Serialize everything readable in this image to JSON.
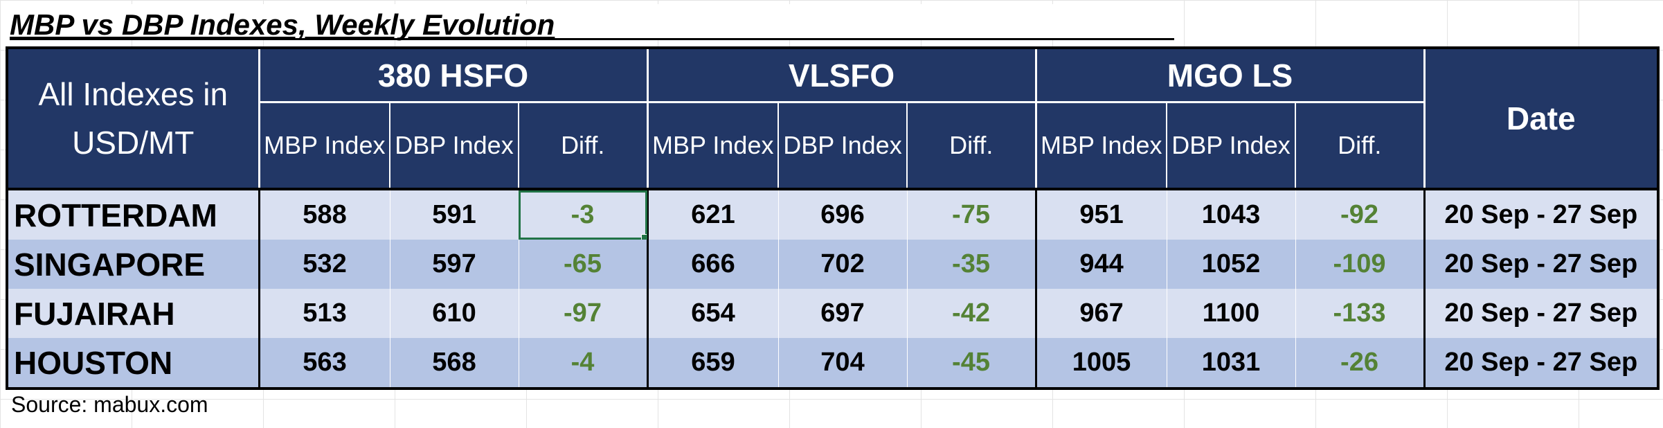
{
  "title": "MBP vs DBP Indexes, Weekly Evolution",
  "header": {
    "left_line1": "All Indexes in",
    "left_line2": "USD/MT",
    "groups": [
      "380 HSFO",
      "VLSFO",
      "MGO LS"
    ],
    "sub_labels": [
      "MBP Index",
      "DBP Index",
      "Diff."
    ],
    "date_label": "Date"
  },
  "rows": [
    {
      "city": "ROTTERDAM",
      "hsfo": [
        "588",
        "591",
        "-3"
      ],
      "vlsfo": [
        "621",
        "696",
        "-75"
      ],
      "mgo": [
        "951",
        "1043",
        "-92"
      ],
      "date": "20 Sep - 27 Sep"
    },
    {
      "city": "SINGAPORE",
      "hsfo": [
        "532",
        "597",
        "-65"
      ],
      "vlsfo": [
        "666",
        "702",
        "-35"
      ],
      "mgo": [
        "944",
        "1052",
        "-109"
      ],
      "date": "20 Sep - 27 Sep"
    },
    {
      "city": "FUJAIRAH",
      "hsfo": [
        "513",
        "610",
        "-97"
      ],
      "vlsfo": [
        "654",
        "697",
        "-42"
      ],
      "mgo": [
        "967",
        "1100",
        "-133"
      ],
      "date": "20 Sep - 27 Sep"
    },
    {
      "city": "HOUSTON",
      "hsfo": [
        "563",
        "568",
        "-4"
      ],
      "vlsfo": [
        "659",
        "704",
        "-45"
      ],
      "mgo": [
        "1005",
        "1031",
        "-26"
      ],
      "date": "20 Sep - 27 Sep"
    }
  ],
  "source": "Source: mabux.com",
  "colors": {
    "header_bg": "#223766",
    "row_light": "#d9e0f1",
    "row_dark": "#b4c4e4",
    "diff_text": "#548235",
    "selection": "#217346"
  }
}
